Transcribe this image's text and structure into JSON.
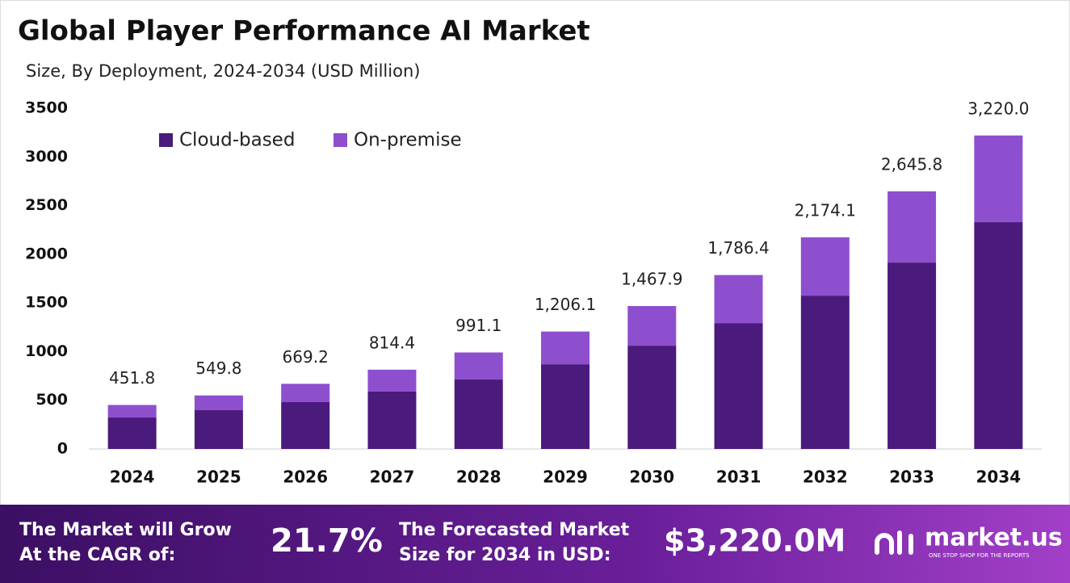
{
  "chart_data": {
    "type": "stacked-bar",
    "title": "Global Player Performance AI Market",
    "subtitle": "Size, By Deployment, 2024-2034 (USD Million)",
    "categories": [
      "2024",
      "2025",
      "2026",
      "2027",
      "2028",
      "2029",
      "2030",
      "2031",
      "2032",
      "2033",
      "2034"
    ],
    "series": [
      {
        "name": "Cloud-based",
        "color": "#4b1a7d",
        "values": [
          323,
          398,
          481,
          589,
          713,
          870,
          1061,
          1293,
          1575,
          1915,
          2330
        ]
      },
      {
        "name": "On-premise",
        "color": "#8e4fcf",
        "values": [
          128.8,
          151.8,
          188.2,
          225.4,
          278.1,
          336.1,
          406.9,
          493.4,
          599.1,
          730.8,
          890
        ]
      }
    ],
    "totals": [
      451.8,
      549.8,
      669.2,
      814.4,
      991.1,
      1206.1,
      1467.9,
      1786.4,
      2174.1,
      2645.8,
      3220.0
    ],
    "total_labels": [
      "451.8",
      "549.8",
      "669.2",
      "814.4",
      "991.1",
      "1,206.1",
      "1,467.9",
      "1,786.4",
      "2,174.1",
      "2,645.8",
      "3,220.0"
    ],
    "ylim": [
      0,
      3500
    ],
    "yticks": [
      0,
      500,
      1000,
      1500,
      2000,
      2500,
      3000,
      3500
    ],
    "grid": false,
    "legend": "top-left"
  },
  "footer": {
    "cagr_text": [
      "The Market will Grow",
      "At the CAGR of:"
    ],
    "cagr_value": "21.7%",
    "forecast_text": [
      "The Forecasted Market",
      "Size for 2034 in USD:"
    ],
    "forecast_value": "$3,220.0M",
    "logo": "market.us",
    "tagline": "ONE STOP SHOP FOR THE REPORTS"
  }
}
